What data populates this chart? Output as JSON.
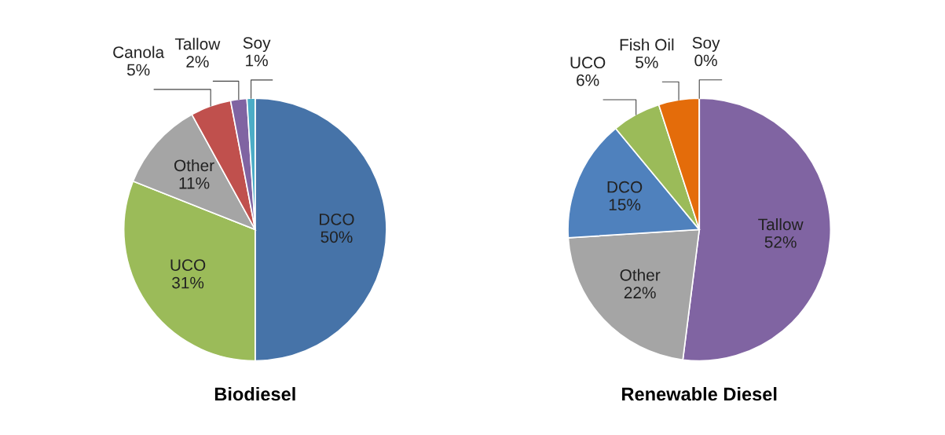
{
  "chart_data": [
    {
      "type": "pie",
      "title": "Biodiesel",
      "categories": [
        "DCO",
        "UCO",
        "Other",
        "Canola",
        "Tallow",
        "Soy"
      ],
      "values": [
        50,
        31,
        11,
        5,
        2,
        1
      ],
      "value_labels": [
        "50%",
        "31%",
        "11%",
        "5%",
        "2%",
        "1%"
      ],
      "colors": [
        "#4673a8",
        "#9bbb59",
        "#a5a5a5",
        "#c0504d",
        "#8064a2",
        "#4bacc6"
      ],
      "legend": false
    },
    {
      "type": "pie",
      "title": "Renewable Diesel",
      "categories": [
        "Tallow",
        "Other",
        "DCO",
        "UCO",
        "Fish Oil",
        "Soy"
      ],
      "values": [
        52,
        22,
        15,
        6,
        5,
        0
      ],
      "value_labels": [
        "52%",
        "22%",
        "15%",
        "6%",
        "5%",
        "0%"
      ],
      "colors": [
        "#8064a2",
        "#a5a5a5",
        "#4f81bd",
        "#9bbb59",
        "#e46c0a",
        "#4bacc6"
      ],
      "legend": false
    }
  ]
}
